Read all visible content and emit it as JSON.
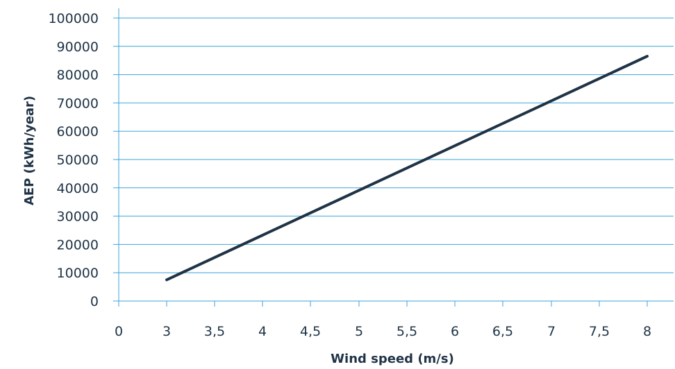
{
  "chart_data": {
    "type": "line",
    "xlabel": "Wind speed (m/s)",
    "ylabel": "AEP (kWh/year)",
    "x_ticks": [
      "0",
      "3",
      "3,5",
      "4",
      "4,5",
      "5",
      "5,5",
      "6",
      "6,5",
      "7",
      "7,5",
      "8"
    ],
    "y_ticks": [
      "0",
      "10000",
      "20000",
      "30000",
      "40000",
      "50000",
      "60000",
      "70000",
      "80000",
      "90000",
      "100000"
    ],
    "ylim": [
      0,
      100000
    ],
    "grid": true,
    "series": [
      {
        "x": [
          3,
          8
        ],
        "y": [
          7500,
          86500
        ],
        "color": "#1f3346"
      }
    ],
    "gridline_color": "#3aa6d9",
    "axis_color": "#3aa6d9",
    "text_color": "#1f3346"
  }
}
